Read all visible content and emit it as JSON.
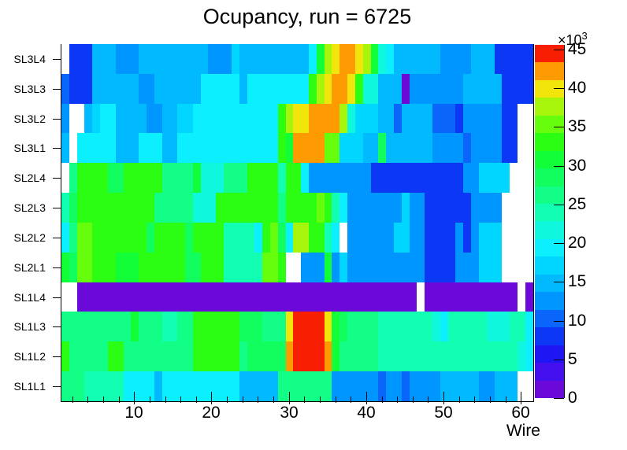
{
  "title": "Ocupancy, run = 6725",
  "axes": {
    "x_label": "Wire",
    "x_major_ticks": [
      "10",
      "20",
      "30",
      "40",
      "50",
      "60"
    ],
    "x_minor_tick_step": 2,
    "y_row_labels": [
      "SL3L4",
      "SL3L3",
      "SL3L2",
      "SL3L1",
      "SL2L4",
      "SL2L3",
      "SL2L2",
      "SL2L1",
      "SL1L4",
      "SL1L3",
      "SL1L2",
      "SL1L1"
    ]
  },
  "colorbar": {
    "exponent": "×10",
    "exponent_sup": "3",
    "tick_labels": [
      "0",
      "5",
      "10",
      "15",
      "20",
      "25",
      "30",
      "35",
      "40",
      "45"
    ],
    "max_value_thousands": 45.6,
    "palette": [
      "#6b0ad8",
      "#4410ee",
      "#1f16f4",
      "#0c38f5",
      "#0a66fa",
      "#0096ff",
      "#00b9ff",
      "#00d6ff",
      "#0cefff",
      "#0ff7dc",
      "#12feb2",
      "#12fe87",
      "#12fe5f",
      "#12fe38",
      "#2bfe12",
      "#66fe0c",
      "#a8f50c",
      "#f2e50c",
      "#fe9b03",
      "#f81e01"
    ]
  },
  "chart_data": {
    "type": "heatmap",
    "title": "Ocupancy, run = 6725",
    "xlabel": "Wire",
    "x_range": [
      1,
      61
    ],
    "ylabels_top_to_bottom": [
      "SL3L4",
      "SL3L3",
      "SL3L2",
      "SL3L1",
      "SL2L4",
      "SL2L3",
      "SL2L2",
      "SL2L1",
      "SL1L4",
      "SL1L3",
      "SL1L2",
      "SL1L1"
    ],
    "z_scale": "occupancy counts ×10³; 20 color levels 0-19, each level ≈ 2.28×10³ counts; '.' = empty (white) bin",
    "legend_position": "right",
    "rows": [
      {
        "label": "SL3L4",
        "levels": ".33366655566666666655576666666668DGHIIHGD98666666555566633333"
      },
      {
        "label": "SL3L3",
        "levels": "43336666665566666688888688888888EGHIIHE9966605555555666663333"
      },
      {
        "label": "SL3L2",
        "levels": "5..6788666655667788888888888EGHHIIIIG9777664666644435555533.."
      },
      {
        "label": "SL3L1",
        "levels": "6.88888666888668888888888888EDIIIIFF77766C66666655554555533.."
      },
      {
        "label": "SL2L4",
        "levels": ".BEEEECCEEEEEBBBBD999BBBEEEEAEE855555555333333333333557777..."
      },
      {
        "label": "SL2L3",
        "levels": "ACEEEEEEEEEEBBBBB999EEEEEEEEBEEEEFEA855555557553333335555...."
      },
      {
        "label": "SL2L2",
        "levels": "8BFFEEEEEEECEEEECEEEEAAAA8EFC8GGEEA8.55555577553333535777...."
      },
      {
        "label": "SL2L1",
        "levels": "DCFFEEEDDDEEEEEECCEEEAAAAAFFE..555D5755555555553333555777...."
      },
      {
        "label": "SL1L4",
        "levels": "..00000000000000000000000000000000000000000000.000000000000.0"
      },
      {
        "label": "SL1L3",
        "levels": "BBBBBBBBBDBBBAABBEEEEEECCCBBBHJJJJHDCBBBBAAAAAAA98AAAAA999AA8"
      },
      {
        "label": "SL1L2",
        "levels": "EBBBBBEEBBBBBBBBBEEEEEEBCCCCCIJJJJIDBBBBBAAAAAAAAAAAAAAAAAA98"
      },
      {
        "label": "SL1L1",
        "levels": "BBBAAAAA88886888888888866666BBBBBBB555555455455556666655666.."
      }
    ]
  }
}
